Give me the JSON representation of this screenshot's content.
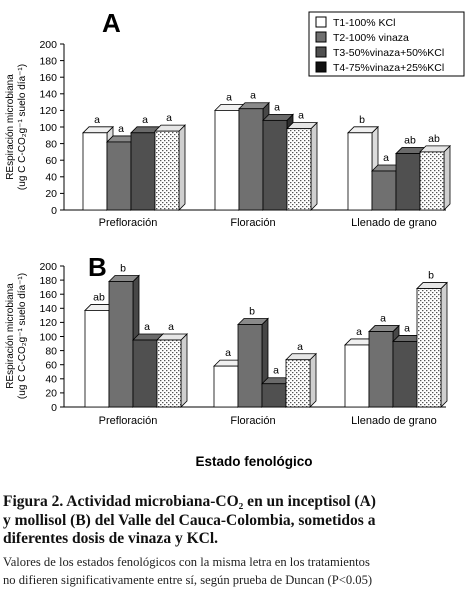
{
  "colors": {
    "T1": "#ffffff",
    "T2": "#707070",
    "T3": "#505050",
    "T4": "dotted-white"
  },
  "legend": [
    "T1-100% KCl",
    "T2-100% vinaza",
    "T3-50%vinaza+50%KCl",
    "T4-75%vinaza+25%KCl"
  ],
  "x_axis_title": "Estado fenológico",
  "caption": {
    "title_lines": [
      "Figura 2. Actividad microbiana-CO₂ en un inceptisol (A)",
      "y mollisol (B) del Valle del Cauca-Colombia, sometidos a",
      "diferentes dosis de vinaza y KCl."
    ],
    "note_lines": [
      "Valores de los estados fenológicos con la misma letra en los tratamientos",
      "no difieren significativamente entre sí, según prueba de Duncan (P<0.05)"
    ]
  },
  "chart_data": [
    {
      "type": "bar",
      "panel_label": "A",
      "categories": [
        "Prefloración",
        "Floración",
        "Llenado de grano"
      ],
      "ylabel_line1": "REspiración microbiana",
      "ylabel_line2": "(ug C C-CO₂g⁻¹ suelo día⁻¹)",
      "ylim": [
        0,
        200
      ],
      "yticks": [
        0,
        20,
        40,
        60,
        80,
        100,
        120,
        140,
        160,
        180,
        200
      ],
      "series": [
        {
          "name": "T1-100% KCl",
          "values": [
            93,
            120,
            93
          ],
          "letters": [
            "a",
            "a",
            "b"
          ]
        },
        {
          "name": "T2-100% vinaza",
          "values": [
            82,
            122,
            47
          ],
          "letters": [
            "a",
            "a",
            "a"
          ]
        },
        {
          "name": "T3-50%vinaza+50%KCl",
          "values": [
            93,
            108,
            68
          ],
          "letters": [
            "a",
            "a",
            "ab"
          ]
        },
        {
          "name": "T4-75%vinaza+25%KCl",
          "values": [
            95,
            98,
            70
          ],
          "letters": [
            "a",
            "a",
            "ab"
          ]
        }
      ],
      "legend_position": "top-right"
    },
    {
      "type": "bar",
      "panel_label": "B",
      "categories": [
        "Prefloración",
        "Floración",
        "Llenado de grano"
      ],
      "ylabel_line1": "REspiración microbiana",
      "ylabel_line2": "(ug C C-CO₂g⁻¹ suelo día⁻¹)",
      "ylim": [
        0,
        200
      ],
      "yticks": [
        0,
        20,
        40,
        60,
        80,
        100,
        120,
        140,
        160,
        180,
        200
      ],
      "series": [
        {
          "name": "T1-100% KCl",
          "values": [
            137,
            58,
            88
          ],
          "letters": [
            "ab",
            "a",
            "a"
          ]
        },
        {
          "name": "T2-100% vinaza",
          "values": [
            178,
            117,
            107
          ],
          "letters": [
            "b",
            "b",
            "a"
          ]
        },
        {
          "name": "T3-50%vinaza+50%KCl",
          "values": [
            95,
            33,
            93
          ],
          "letters": [
            "a",
            "a",
            "a"
          ]
        },
        {
          "name": "T4-75%vinaza+25%KCl",
          "values": [
            95,
            67,
            168
          ],
          "letters": [
            "a",
            "a",
            "b"
          ]
        }
      ]
    }
  ]
}
